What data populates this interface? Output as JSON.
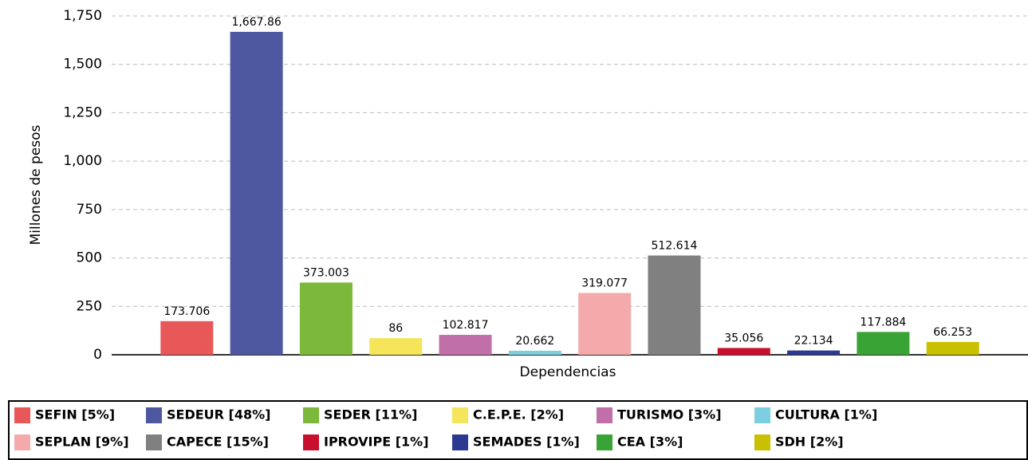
{
  "chart_data": {
    "type": "bar",
    "y_label": "Millones de pesos",
    "x_label": "Dependencias",
    "categories": [
      "SEFIN [5%]",
      "SEDEUR [48%]",
      "SEDER [11%]",
      "C.E.P.E. [2%]",
      "TURISMO [3%]",
      "CULTURA [1%]",
      "SEPLAN [9%]",
      "CAPECE [15%]",
      "IPROVIPE [1%]",
      "SEMADES [1%]",
      "CEA [3%]",
      "SDH [2%]"
    ],
    "values": [
      173.706,
      1667.86,
      373.003,
      86,
      102.817,
      20.662,
      319.077,
      512.614,
      35.056,
      22.134,
      117.884,
      66.253
    ],
    "value_labels": [
      "173.706",
      "1,667.86",
      "373.003",
      "86",
      "102.817",
      "20.662",
      "319.077",
      "512.614",
      "35.056",
      "22.134",
      "117.884",
      "66.253"
    ],
    "colors": [
      "#e85858",
      "#4e58a0",
      "#7cb83a",
      "#f5e55a",
      "#c06fa8",
      "#7ccfe0",
      "#f4aaaa",
      "#808080",
      "#c8102e",
      "#2b3990",
      "#3aa335",
      "#c8c000"
    ],
    "ylim": [
      0,
      1750
    ],
    "yticks": [
      0,
      250,
      500,
      750,
      {
        "value": 1000,
        "label": "1,000"
      },
      {
        "value": 1250,
        "label": "1,250"
      },
      {
        "value": 1500,
        "label": "1,500"
      },
      {
        "value": 1750,
        "label": "1,750"
      }
    ],
    "grid": true
  }
}
